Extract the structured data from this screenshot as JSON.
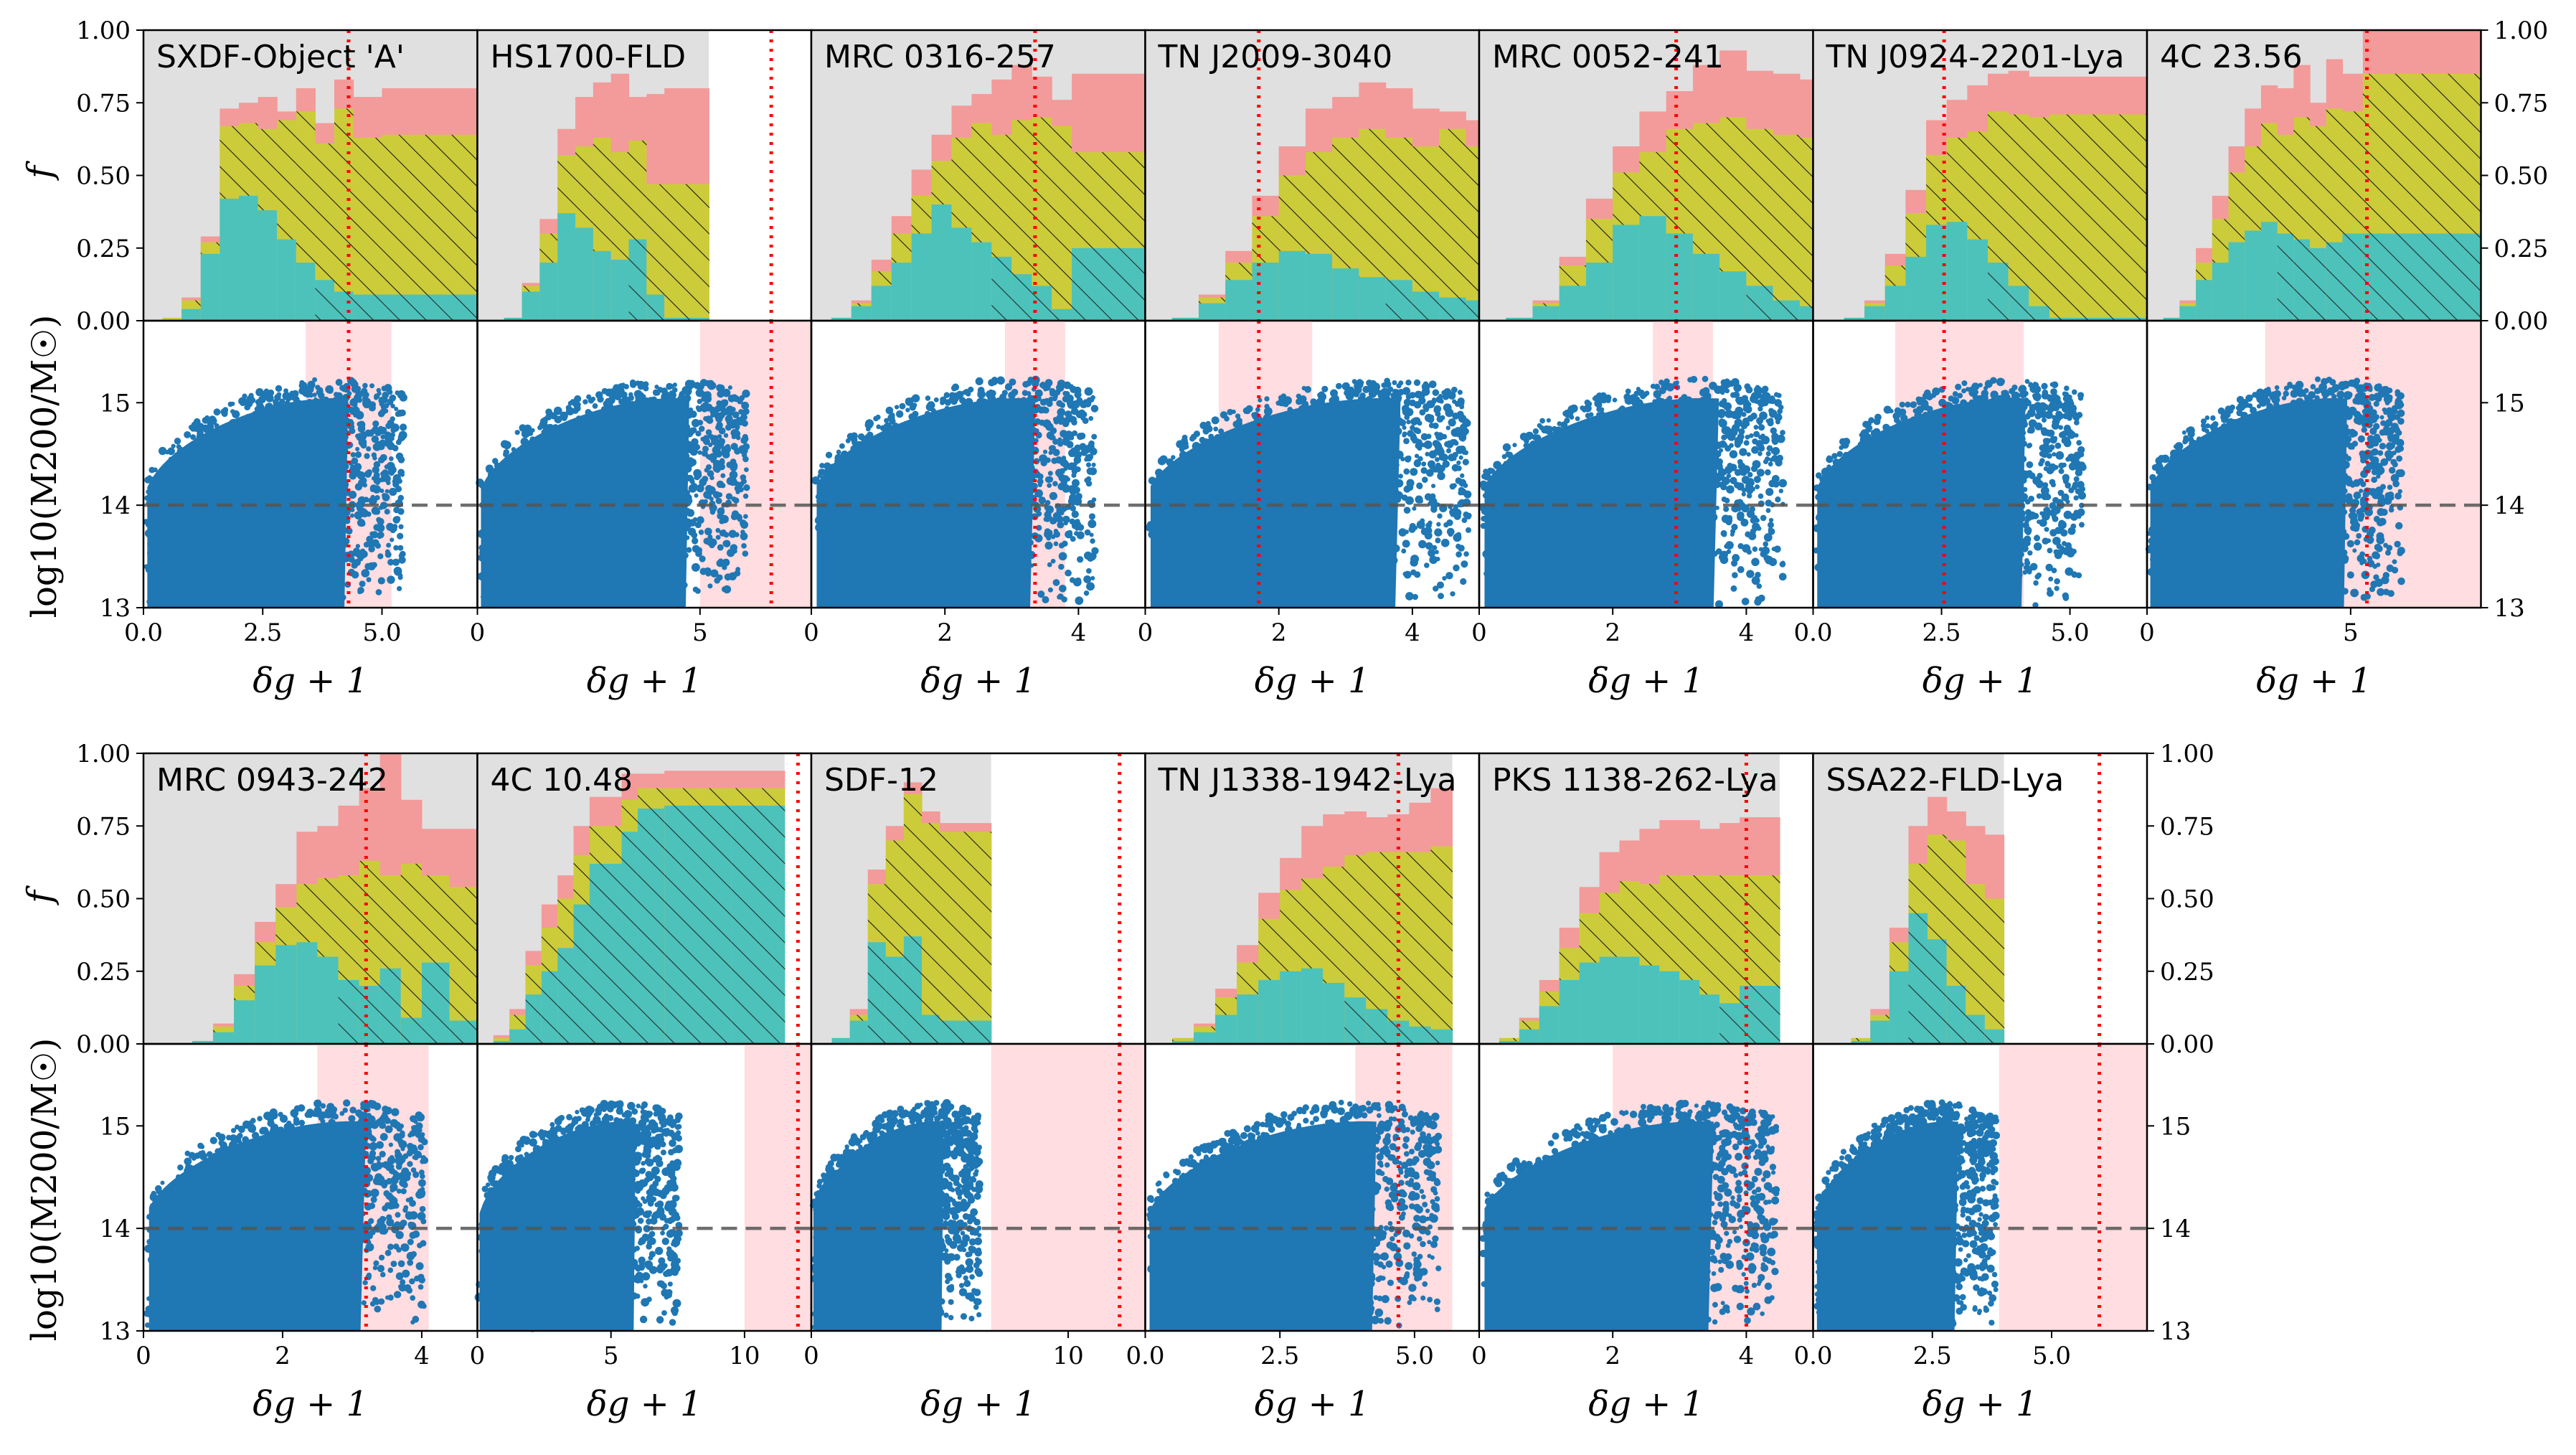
{
  "chart_data": {
    "type": "multi-panel histogram and scatter",
    "colors": {
      "background": "#e0e0e0",
      "teal": "#4cc2bb",
      "olive": "#cccc3a",
      "salmon": "#f39a9a",
      "shade": "#ffdde0",
      "points": "#1f77b4",
      "threshold": "#ff0000",
      "dashed": "#555555"
    },
    "top_ylabel": "f",
    "bottom_ylabel": "log10(M200/M☉)",
    "xlabel": "δg + 1",
    "top_yticks": [
      "0.00",
      "0.25",
      "0.50",
      "0.75",
      "1.00"
    ],
    "bottom_yticks": [
      "13",
      "14",
      "15"
    ],
    "bottom_ylim": [
      13,
      15.8
    ],
    "dashed_level": 14,
    "panels": [
      {
        "title": "SXDF-Object 'A'",
        "xmax": 7.0,
        "xticks": [
          0,
          2.5,
          5.0
        ],
        "xtick_labels": [
          "0.0",
          "2.5",
          "5.0"
        ],
        "threshold": 4.3,
        "shade": [
          3.4,
          5.2
        ],
        "edges": [
          0.4,
          0.8,
          1.2,
          1.6,
          2.0,
          2.4,
          2.8,
          3.2,
          3.6,
          4.0,
          4.4,
          5.0,
          7.0
        ],
        "teal": [
          0.0,
          0.04,
          0.23,
          0.42,
          0.43,
          0.38,
          0.28,
          0.2,
          0.14,
          0.1,
          0.09,
          0.09
        ],
        "olive": [
          0.01,
          0.07,
          0.27,
          0.67,
          0.68,
          0.66,
          0.69,
          0.72,
          0.61,
          0.73,
          0.63,
          0.64
        ],
        "total": [
          0.01,
          0.08,
          0.29,
          0.73,
          0.75,
          0.77,
          0.72,
          0.8,
          0.68,
          0.83,
          0.77,
          0.8
        ],
        "hatch_from": 3.6,
        "cloud_max": 5.4
      },
      {
        "title": "HS1700-FLD",
        "xmax": 7.5,
        "xticks": [
          0,
          5
        ],
        "xtick_labels": [
          "0",
          "5"
        ],
        "threshold": 6.6,
        "shade": [
          5.0,
          7.5
        ],
        "edges": [
          0.6,
          1.0,
          1.4,
          1.8,
          2.2,
          2.6,
          3.0,
          3.4,
          3.8,
          4.2,
          4.6,
          5.2
        ],
        "teal": [
          0.01,
          0.1,
          0.2,
          0.37,
          0.32,
          0.24,
          0.21,
          0.28,
          0.09,
          0.01,
          0.01
        ],
        "olive": [
          0.01,
          0.12,
          0.3,
          0.57,
          0.6,
          0.63,
          0.58,
          0.62,
          0.47,
          0.47,
          0.47
        ],
        "total": [
          0.01,
          0.13,
          0.35,
          0.66,
          0.77,
          0.82,
          0.85,
          0.77,
          0.78,
          0.8,
          0.8
        ],
        "hatch_from": 3.4,
        "cloud_max": 6.0
      },
      {
        "title": "MRC 0316-257",
        "xmax": 5.0,
        "xticks": [
          0,
          2,
          4
        ],
        "xtick_labels": [
          "0",
          "2",
          "4"
        ],
        "threshold": 3.35,
        "shade": [
          2.9,
          3.8
        ],
        "edges": [
          0.3,
          0.6,
          0.9,
          1.2,
          1.5,
          1.8,
          2.1,
          2.4,
          2.7,
          3.0,
          3.3,
          3.6,
          3.9,
          5.0
        ],
        "teal": [
          0.01,
          0.05,
          0.12,
          0.2,
          0.3,
          0.4,
          0.32,
          0.27,
          0.22,
          0.16,
          0.12,
          0.04,
          0.25
        ],
        "olive": [
          0.01,
          0.06,
          0.17,
          0.3,
          0.43,
          0.55,
          0.63,
          0.68,
          0.64,
          0.69,
          0.7,
          0.67,
          0.58
        ],
        "total": [
          0.01,
          0.07,
          0.21,
          0.36,
          0.52,
          0.64,
          0.74,
          0.78,
          0.83,
          0.88,
          0.84,
          0.76,
          0.85
        ],
        "hatch_from": 2.7,
        "cloud_max": 4.2
      },
      {
        "title": "TN J2009-3040",
        "xmax": 5.0,
        "xticks": [
          0,
          2,
          4
        ],
        "xtick_labels": [
          "0",
          "2",
          "4"
        ],
        "threshold": 1.7,
        "shade": [
          1.1,
          2.5
        ],
        "edges": [
          0.4,
          0.8,
          1.2,
          1.6,
          2.0,
          2.4,
          2.8,
          3.2,
          3.6,
          4.0,
          4.4,
          4.8,
          5.0
        ],
        "teal": [
          0.01,
          0.06,
          0.14,
          0.2,
          0.24,
          0.23,
          0.18,
          0.15,
          0.14,
          0.1,
          0.08,
          0.07
        ],
        "olive": [
          0.01,
          0.08,
          0.2,
          0.36,
          0.5,
          0.58,
          0.63,
          0.66,
          0.63,
          0.6,
          0.66,
          0.6
        ],
        "total": [
          0.01,
          0.09,
          0.24,
          0.43,
          0.6,
          0.73,
          0.77,
          0.82,
          0.8,
          0.73,
          0.72,
          0.69
        ],
        "hatch_from": 3.6,
        "cloud_max": 4.8
      },
      {
        "title": "MRC 0052-241",
        "xmax": 5.0,
        "xticks": [
          0,
          2,
          4
        ],
        "xtick_labels": [
          "0",
          "2",
          "4"
        ],
        "threshold": 2.95,
        "shade": [
          2.6,
          3.5
        ],
        "edges": [
          0.4,
          0.8,
          1.2,
          1.6,
          2.0,
          2.4,
          2.8,
          3.2,
          3.6,
          4.0,
          4.4,
          4.8,
          5.0
        ],
        "teal": [
          0.01,
          0.05,
          0.12,
          0.2,
          0.33,
          0.36,
          0.3,
          0.23,
          0.17,
          0.12,
          0.07,
          0.05
        ],
        "olive": [
          0.01,
          0.06,
          0.19,
          0.35,
          0.51,
          0.58,
          0.66,
          0.68,
          0.7,
          0.66,
          0.64,
          0.63
        ],
        "total": [
          0.01,
          0.07,
          0.22,
          0.42,
          0.6,
          0.72,
          0.79,
          0.88,
          0.93,
          0.86,
          0.85,
          0.83
        ],
        "hatch_from": 4.0,
        "cloud_max": 4.5
      },
      {
        "title": "TN J0924-2201-Lya",
        "xmax": 6.5,
        "xticks": [
          0,
          2.5,
          5.0
        ],
        "xtick_labels": [
          "0.0",
          "2.5",
          "5.0"
        ],
        "threshold": 2.55,
        "shade": [
          1.6,
          4.1
        ],
        "edges": [
          0.6,
          1.0,
          1.4,
          1.8,
          2.2,
          2.6,
          3.0,
          3.4,
          3.8,
          4.2,
          4.6,
          5.0,
          6.5
        ],
        "teal": [
          0.01,
          0.05,
          0.12,
          0.22,
          0.33,
          0.34,
          0.28,
          0.2,
          0.12,
          0.05,
          0.01,
          0.01
        ],
        "olive": [
          0.01,
          0.06,
          0.19,
          0.37,
          0.57,
          0.63,
          0.65,
          0.72,
          0.71,
          0.7,
          0.71,
          0.71
        ],
        "total": [
          0.01,
          0.07,
          0.23,
          0.45,
          0.69,
          0.76,
          0.81,
          0.85,
          0.86,
          0.84,
          0.84,
          0.84
        ],
        "hatch_from": 3.4,
        "cloud_max": 5.2
      },
      {
        "title": "4C 23.56",
        "xmax": 8.2,
        "xticks": [
          0,
          5
        ],
        "xtick_labels": [
          "0",
          "5"
        ],
        "threshold": 5.4,
        "shade": [
          2.9,
          8.2
        ],
        "edges": [
          0.4,
          0.8,
          1.2,
          1.6,
          2.0,
          2.4,
          2.8,
          3.2,
          3.6,
          4.0,
          4.4,
          4.8,
          5.3,
          8.2
        ],
        "teal": [
          0.01,
          0.05,
          0.14,
          0.2,
          0.27,
          0.31,
          0.34,
          0.3,
          0.28,
          0.25,
          0.27,
          0.3,
          0.3
        ],
        "olive": [
          0.01,
          0.06,
          0.2,
          0.35,
          0.51,
          0.6,
          0.68,
          0.64,
          0.7,
          0.67,
          0.73,
          0.72,
          0.85
        ],
        "total": [
          0.01,
          0.07,
          0.25,
          0.43,
          0.6,
          0.73,
          0.81,
          0.8,
          0.88,
          0.75,
          0.9,
          0.85,
          1.0
        ],
        "hatch_from": 3.2,
        "cloud_max": 6.2
      },
      {
        "title": "MRC 0943-242",
        "xmax": 4.8,
        "xticks": [
          0,
          2,
          4
        ],
        "xtick_labels": [
          "0",
          "2",
          "4"
        ],
        "threshold": 3.2,
        "shade": [
          2.5,
          4.1
        ],
        "edges": [
          0.4,
          0.7,
          1.0,
          1.3,
          1.6,
          1.9,
          2.2,
          2.5,
          2.8,
          3.1,
          3.4,
          3.7,
          4.0,
          4.4,
          4.8
        ],
        "teal": [
          0.0,
          0.01,
          0.04,
          0.15,
          0.27,
          0.34,
          0.35,
          0.3,
          0.22,
          0.2,
          0.26,
          0.09,
          0.28,
          0.08
        ],
        "olive": [
          0.0,
          0.01,
          0.06,
          0.2,
          0.35,
          0.47,
          0.55,
          0.57,
          0.58,
          0.63,
          0.58,
          0.62,
          0.58,
          0.54
        ],
        "total": [
          0.0,
          0.01,
          0.07,
          0.24,
          0.42,
          0.55,
          0.73,
          0.75,
          0.82,
          0.88,
          1.0,
          0.84,
          0.74,
          0.74
        ],
        "hatch_from": 2.8,
        "cloud_max": 4.0
      },
      {
        "title": "4C 10.48",
        "xmax": 12.5,
        "xticks": [
          0,
          5,
          10
        ],
        "xtick_labels": [
          "0",
          "5",
          "10"
        ],
        "threshold": 12.0,
        "shade": [
          10.0,
          12.5
        ],
        "edges": [
          0.6,
          1.2,
          1.8,
          2.4,
          3.0,
          3.6,
          4.2,
          5.4,
          6.0,
          7.0,
          8.5,
          9.5,
          11.5
        ],
        "teal": [
          0.01,
          0.05,
          0.17,
          0.25,
          0.33,
          0.48,
          0.62,
          0.73,
          0.81,
          0.82,
          0.82,
          0.82
        ],
        "olive": [
          0.02,
          0.1,
          0.27,
          0.4,
          0.5,
          0.65,
          0.75,
          0.84,
          0.88,
          0.88,
          0.88,
          0.88
        ],
        "total": [
          0.03,
          0.12,
          0.32,
          0.48,
          0.58,
          0.75,
          0.85,
          0.93,
          0.93,
          0.94,
          0.94,
          0.94
        ],
        "hatch_from": 1.8,
        "cloud_max": 7.5
      },
      {
        "title": "SDF-12",
        "xmax": 13.0,
        "xticks": [
          0,
          10
        ],
        "xtick_labels": [
          "0",
          "10"
        ],
        "threshold": 12.0,
        "shade": [
          7.0,
          13.0
        ],
        "edges": [
          0.8,
          1.5,
          2.2,
          2.9,
          3.6,
          4.3,
          5.0,
          5.7,
          7.0
        ],
        "teal": [
          0.02,
          0.08,
          0.35,
          0.3,
          0.37,
          0.1,
          0.08,
          0.08
        ],
        "olive": [
          0.02,
          0.1,
          0.55,
          0.7,
          0.86,
          0.76,
          0.73,
          0.73
        ],
        "total": [
          0.02,
          0.12,
          0.6,
          0.75,
          0.9,
          0.8,
          0.76,
          0.76
        ],
        "hatch_from": 2.2,
        "cloud_max": 6.5
      },
      {
        "title": "TN J1338-1942-Lya",
        "xmax": 6.2,
        "xticks": [
          0,
          2.5,
          5.0
        ],
        "xtick_labels": [
          "0.0",
          "2.5",
          "5.0"
        ],
        "threshold": 4.7,
        "shade": [
          3.9,
          5.7
        ],
        "edges": [
          0.5,
          0.9,
          1.3,
          1.7,
          2.1,
          2.5,
          2.9,
          3.3,
          3.7,
          4.1,
          4.5,
          4.9,
          5.3,
          5.7
        ],
        "teal": [
          0.01,
          0.04,
          0.1,
          0.17,
          0.22,
          0.25,
          0.26,
          0.21,
          0.16,
          0.12,
          0.08,
          0.06,
          0.05
        ],
        "olive": [
          0.02,
          0.06,
          0.16,
          0.28,
          0.43,
          0.53,
          0.57,
          0.61,
          0.65,
          0.66,
          0.66,
          0.66,
          0.68
        ],
        "total": [
          0.02,
          0.07,
          0.19,
          0.34,
          0.52,
          0.64,
          0.75,
          0.79,
          0.8,
          0.78,
          0.79,
          0.83,
          0.88
        ],
        "hatch_from": 3.7,
        "cloud_max": 5.4
      },
      {
        "title": "PKS 1138-262-Lya",
        "xmax": 5.0,
        "xticks": [
          0,
          2,
          4
        ],
        "xtick_labels": [
          "0",
          "2",
          "4"
        ],
        "threshold": 4.0,
        "shade": [
          2.0,
          5.0
        ],
        "edges": [
          0.3,
          0.6,
          0.9,
          1.2,
          1.5,
          1.8,
          2.1,
          2.4,
          2.7,
          3.0,
          3.3,
          3.6,
          3.9,
          4.5
        ],
        "teal": [
          0.01,
          0.05,
          0.13,
          0.22,
          0.28,
          0.3,
          0.3,
          0.27,
          0.25,
          0.22,
          0.17,
          0.14,
          0.2
        ],
        "olive": [
          0.02,
          0.08,
          0.18,
          0.33,
          0.45,
          0.52,
          0.56,
          0.55,
          0.58,
          0.58,
          0.58,
          0.58,
          0.58
        ],
        "total": [
          0.02,
          0.09,
          0.22,
          0.4,
          0.54,
          0.66,
          0.7,
          0.74,
          0.77,
          0.77,
          0.74,
          0.76,
          0.78
        ],
        "hatch_from": 3.6,
        "cloud_max": 4.4
      },
      {
        "title": "SSA22-FLD-Lya",
        "xmax": 7.0,
        "xticks": [
          0,
          2.5,
          5.0
        ],
        "xtick_labels": [
          "0.0",
          "2.5",
          "5.0"
        ],
        "threshold": 6.0,
        "shade": [
          3.9,
          7.0
        ],
        "edges": [
          0.8,
          1.2,
          1.6,
          2.0,
          2.4,
          2.8,
          3.2,
          3.6,
          4.0
        ],
        "teal": [
          0.01,
          0.08,
          0.25,
          0.45,
          0.36,
          0.2,
          0.1,
          0.05
        ],
        "olive": [
          0.02,
          0.1,
          0.35,
          0.62,
          0.72,
          0.7,
          0.55,
          0.5
        ],
        "total": [
          0.02,
          0.12,
          0.4,
          0.75,
          0.85,
          0.8,
          0.75,
          0.72
        ],
        "hatch_from": 2.0,
        "cloud_max": 3.8
      }
    ]
  }
}
